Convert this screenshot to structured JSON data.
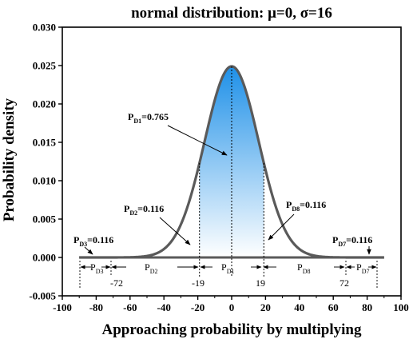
{
  "chart_data": {
    "type": "area",
    "title": "normal distribution: μ=0, σ=16",
    "xlabel": "Approaching probability by multiplying",
    "ylabel": "Probability density",
    "xlim": [
      -100,
      100
    ],
    "ylim": [
      -0.005,
      0.03
    ],
    "xticks": [
      "-100",
      "-80",
      "-60",
      "-40",
      "-20",
      "0",
      "20",
      "40",
      "60",
      "80",
      "100"
    ],
    "yticks": [
      "-0.005",
      "0.000",
      "0.005",
      "0.010",
      "0.015",
      "0.020",
      "0.025",
      "0.030"
    ],
    "grid": false,
    "distribution": {
      "mean": 0,
      "sd": 16,
      "x_range": [
        -90,
        90
      ],
      "peak": 0.0249
    },
    "fill_range": [
      -19,
      19
    ],
    "vlines": [
      -19,
      0,
      19
    ],
    "curve_color": "#5a5a5a",
    "fill_color_top": "#1e90e8",
    "fill_color_bottom": "#ffffff",
    "regions": [
      {
        "name": "D1",
        "label": "PD1=0.765",
        "region": "PD1"
      },
      {
        "name": "D2",
        "label": "PD2=0.116",
        "region": "PD2"
      },
      {
        "name": "D8",
        "label": "PD8=0.116",
        "region": "PD8"
      },
      {
        "name": "D3",
        "label": "PD3=0.116",
        "region": "PD3"
      },
      {
        "name": "D7",
        "label": "PD7=0.116",
        "region": "PD7"
      }
    ],
    "boundary_labels": [
      "-72",
      "-19",
      "19",
      "72"
    ],
    "boundary_values": [
      -72,
      -19,
      19,
      72
    ]
  },
  "labels": {
    "d1_base": "P",
    "d1_sub": "D1",
    "d1_val": "=0.765",
    "d2_base": "P",
    "d2_sub": "D2",
    "d2_val": "=0.116",
    "d8_base": "P",
    "d8_sub": "D8",
    "d8_val": "=0.116",
    "d3_base": "P",
    "d3_sub": "D3",
    "d3_val": "=0.116",
    "d7_base": "P",
    "d7_sub": "D7",
    "d7_val": "=0.116",
    "r_p": "P",
    "r_d3": "D3",
    "r_d2": "D2",
    "r_d1": "D1",
    "r_d8": "D8",
    "r_d7": "D7"
  }
}
